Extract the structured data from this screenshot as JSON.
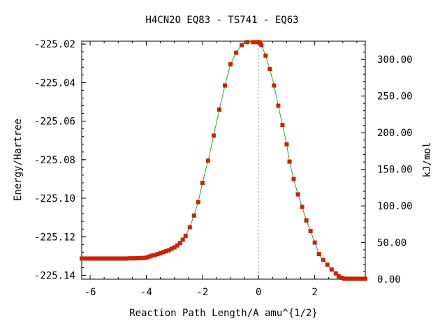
{
  "chart_data": {
    "type": "line",
    "title": "H4CN2O   EQ83 - TS741 - EQ63",
    "xlabel": "Reaction Path Length/A amu^{1/2}",
    "ylabel": "Energy/Hartree",
    "y2label": "kJ/mol",
    "xlim": [
      -6.3,
      3.8
    ],
    "ylim": [
      -225.142,
      -225.0185
    ],
    "y2lim": [
      0,
      325
    ],
    "x_ticks": [
      -6,
      -4,
      -2,
      0,
      2
    ],
    "x_tick_labels": [
      "-6",
      "-4",
      "-2",
      "0",
      "2"
    ],
    "y_ticks": [
      -225.02,
      -225.04,
      -225.06,
      -225.08,
      -225.1,
      -225.12,
      -225.14
    ],
    "y_tick_labels": [
      "-225.02",
      "-225.04",
      "-225.06",
      "-225.08",
      "-225.10",
      "-225.12",
      "-225.14"
    ],
    "y2_ticks": [
      300,
      250,
      200,
      150,
      100,
      50,
      0
    ],
    "y2_tick_labels": [
      "300.00",
      "250.00",
      "200.00",
      "150.00",
      "100.00",
      "50.00",
      "0.00"
    ],
    "ts_marker_x": 0,
    "grid": false,
    "legend": "none",
    "colors": {
      "line": "#22aa22",
      "marker": "#cc2200",
      "ts_marker": "#999999"
    },
    "series": [
      {
        "x": [
          -6.3,
          -6.2,
          -6.1,
          -6.0,
          -5.9,
          -5.8,
          -5.7,
          -5.6,
          -5.5,
          -5.4,
          -5.3,
          -5.2,
          -5.1,
          -5.0,
          -4.9,
          -4.8,
          -4.7,
          -4.6,
          -4.5,
          -4.4,
          -4.3,
          -4.2,
          -4.1,
          -4.0,
          -3.9,
          -3.8,
          -3.7,
          -3.6,
          -3.5,
          -3.4,
          -3.3,
          -3.2,
          -3.1,
          -3.0,
          -2.9,
          -2.8,
          -2.7,
          -2.6,
          -2.45,
          -2.3,
          -2.15,
          -2.0,
          -1.8,
          -1.6,
          -1.4,
          -1.2,
          -1.0,
          -0.8,
          -0.6,
          -0.4,
          -0.2,
          -0.05,
          0.0,
          0.05,
          0.1,
          0.25,
          0.4,
          0.55,
          0.7,
          0.85,
          1.0,
          1.1,
          1.25,
          1.4,
          1.55,
          1.7,
          1.85,
          2.0,
          2.15,
          2.3,
          2.45,
          2.6,
          2.75,
          2.85,
          2.95,
          3.05,
          3.15,
          3.25,
          3.35,
          3.45,
          3.55,
          3.65,
          3.75,
          3.8
        ],
        "y": [
          -225.1313,
          -225.1313,
          -225.1313,
          -225.1313,
          -225.1313,
          -225.1313,
          -225.1313,
          -225.1313,
          -225.1313,
          -225.1313,
          -225.1313,
          -225.1313,
          -225.1313,
          -225.1313,
          -225.1313,
          -225.1313,
          -225.1313,
          -225.1312,
          -225.1312,
          -225.1312,
          -225.1311,
          -225.1311,
          -225.131,
          -225.1308,
          -225.1303,
          -225.1298,
          -225.1295,
          -225.129,
          -225.1285,
          -225.128,
          -225.1275,
          -225.127,
          -225.1262,
          -225.1255,
          -225.1245,
          -225.1232,
          -225.1215,
          -225.1195,
          -225.115,
          -225.109,
          -225.102,
          -225.092,
          -225.0805,
          -225.0675,
          -225.054,
          -225.0415,
          -225.0305,
          -225.0245,
          -225.0205,
          -225.019,
          -225.019,
          -225.019,
          -225.019,
          -225.0192,
          -225.0205,
          -225.026,
          -225.033,
          -225.0415,
          -225.052,
          -225.062,
          -225.072,
          -225.081,
          -225.09,
          -225.098,
          -225.1045,
          -225.1115,
          -225.117,
          -225.123,
          -225.129,
          -225.132,
          -225.1345,
          -225.137,
          -225.139,
          -225.1405,
          -225.1413,
          -225.1417,
          -225.1418,
          -225.1418,
          -225.1418,
          -225.1418,
          -225.1418,
          -225.1418,
          -225.1418,
          -225.1418
        ]
      }
    ]
  }
}
